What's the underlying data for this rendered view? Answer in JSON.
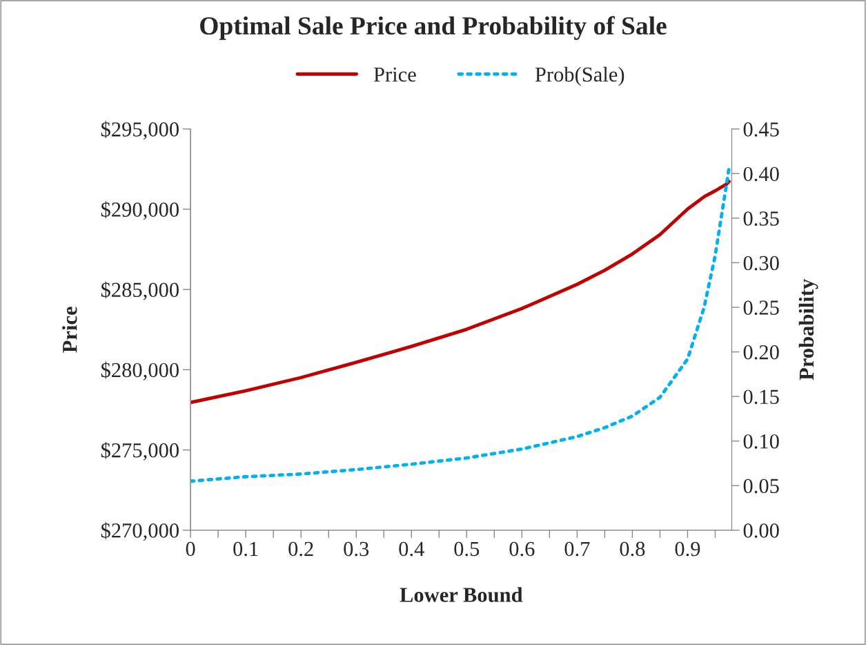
{
  "chart_data": {
    "type": "line",
    "title": "Optimal Sale Price and Probability of Sale",
    "xlabel": "Lower Bound",
    "ylabel": "Price",
    "y2label": "Probability",
    "x": [
      0,
      0.1,
      0.2,
      0.3,
      0.4,
      0.5,
      0.6,
      0.7,
      0.75,
      0.8,
      0.85,
      0.9,
      0.93,
      0.95,
      0.97,
      0.975
    ],
    "series": [
      {
        "name": "Price",
        "color": "#c00000",
        "line_style": "solid",
        "values": [
          277960,
          278690,
          279510,
          280460,
          281450,
          282520,
          283810,
          285320,
          286200,
          287210,
          288420,
          290010,
          290780,
          291150,
          291550,
          291730
        ]
      },
      {
        "name": "Prob(Sale)",
        "color": "#00b0f0",
        "line_style": "dotted",
        "axis": "y2",
        "values": [
          0.055,
          0.06,
          0.063,
          0.068,
          0.074,
          0.081,
          0.091,
          0.105,
          0.115,
          0.128,
          0.149,
          0.192,
          0.25,
          0.308,
          0.386,
          0.406
        ]
      }
    ],
    "xlim": [
      0,
      0.98
    ],
    "xticks": [
      0,
      {
        "value": 0.05,
        "label": null
      },
      0.1,
      {
        "value": 0.15,
        "label": null
      },
      0.2,
      {
        "value": 0.25,
        "label": null
      },
      0.3,
      {
        "value": 0.35,
        "label": null
      },
      0.4,
      {
        "value": 0.45,
        "label": null
      },
      0.5,
      {
        "value": 0.55,
        "label": null
      },
      0.6,
      {
        "value": 0.65,
        "label": null
      },
      0.7,
      {
        "value": 0.75,
        "label": null
      },
      0.8,
      {
        "value": 0.85,
        "label": null
      },
      0.9,
      {
        "value": 0.95,
        "label": null
      }
    ],
    "ylim": [
      270000,
      295000
    ],
    "yticks": [
      {
        "value": 270000,
        "label": "$270,000"
      },
      {
        "value": 275000,
        "label": "$275,000"
      },
      {
        "value": 280000,
        "label": "$280,000"
      },
      {
        "value": 285000,
        "label": "$285,000"
      },
      {
        "value": 290000,
        "label": "$290,000"
      },
      {
        "value": 295000,
        "label": "$295,000"
      }
    ],
    "y2lim": [
      0,
      0.45
    ],
    "y2ticks": [
      {
        "value": 0,
        "label": "0.00"
      },
      {
        "value": 0.05,
        "label": "0.05"
      },
      {
        "value": 0.1,
        "label": "0.10"
      },
      {
        "value": 0.15,
        "label": "0.15"
      },
      {
        "value": 0.2,
        "label": "0.20"
      },
      {
        "value": 0.25,
        "label": "0.25"
      },
      {
        "value": 0.3,
        "label": "0.30"
      },
      {
        "value": 0.35,
        "label": "0.35"
      },
      {
        "value": 0.4,
        "label": "0.40"
      },
      {
        "value": 0.45,
        "label": "0.45"
      }
    ],
    "grid": false,
    "legend": "top"
  }
}
